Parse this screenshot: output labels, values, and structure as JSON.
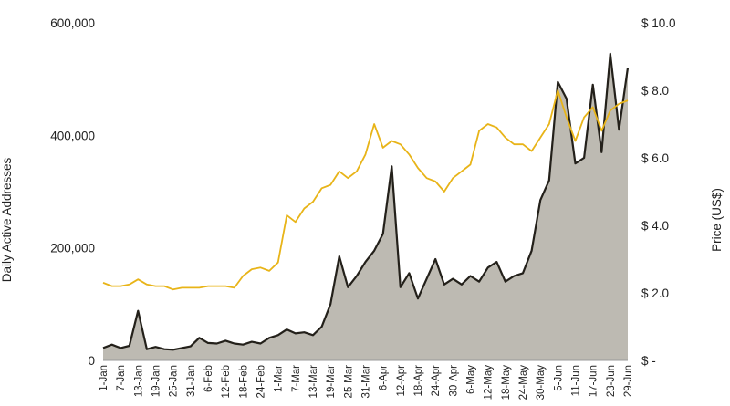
{
  "chart_data": {
    "type": "area",
    "title": "",
    "ylabel": "Daily Active Addresses",
    "y2label": "Price (US$)",
    "ylim": [
      0,
      600000
    ],
    "y2lim": [
      0,
      10
    ],
    "yticks": [
      "0",
      "200,000",
      "400,000",
      "600,000"
    ],
    "y2ticks": [
      "$ -",
      "$ 2.0",
      "$ 4.0",
      "$ 6.0",
      "$ 8.0",
      "$ 10.0"
    ],
    "xticks": [
      "1-Jan",
      "7-Jan",
      "13-Jan",
      "19-Jan",
      "25-Jan",
      "31-Jan",
      "6-Feb",
      "12-Feb",
      "18-Feb",
      "24-Feb",
      "1-Mar",
      "7-Mar",
      "13-Mar",
      "19-Mar",
      "25-Mar",
      "31-Mar",
      "6-Apr",
      "12-Apr",
      "18-Apr",
      "24-Apr",
      "30-Apr",
      "6-May",
      "12-May",
      "18-May",
      "24-May",
      "30-May",
      "5-Jun",
      "11-Jun",
      "17-Jun",
      "23-Jun",
      "29-Jun"
    ],
    "x_days": [
      0,
      3,
      6,
      9,
      12,
      15,
      18,
      21,
      24,
      27,
      30,
      33,
      36,
      39,
      42,
      45,
      48,
      51,
      54,
      57,
      60,
      63,
      66,
      69,
      72,
      75,
      78,
      81,
      84,
      87,
      90,
      93,
      96,
      99,
      102,
      105,
      108,
      111,
      114,
      117,
      120,
      123,
      126,
      129,
      132,
      135,
      138,
      141,
      144,
      147,
      150,
      153,
      156,
      159,
      162,
      165,
      168,
      171,
      174,
      177,
      180
    ],
    "series": [
      {
        "name": "Daily Active Addresses",
        "axis": "left",
        "color": "#23201a",
        "fill": "#bdbab2",
        "values": [
          22000,
          28000,
          22000,
          26000,
          88000,
          20000,
          24000,
          20000,
          19000,
          22000,
          25000,
          40000,
          31000,
          30000,
          35000,
          30000,
          28000,
          33000,
          30000,
          40000,
          45000,
          55000,
          48000,
          50000,
          45000,
          60000,
          100000,
          185000,
          130000,
          150000,
          175000,
          195000,
          225000,
          345000,
          130000,
          155000,
          110000,
          145000,
          180000,
          135000,
          145000,
          135000,
          150000,
          140000,
          165000,
          175000,
          140000,
          150000,
          155000,
          195000,
          285000,
          320000,
          495000,
          465000,
          350000,
          360000,
          490000,
          370000,
          545000,
          410000,
          520000
        ]
      },
      {
        "name": "Price",
        "axis": "right",
        "color": "#e8b418",
        "values": [
          2.3,
          2.2,
          2.2,
          2.25,
          2.4,
          2.25,
          2.2,
          2.2,
          2.1,
          2.15,
          2.15,
          2.15,
          2.2,
          2.2,
          2.2,
          2.15,
          2.5,
          2.7,
          2.75,
          2.65,
          2.9,
          4.3,
          4.1,
          4.5,
          4.7,
          5.1,
          5.2,
          5.6,
          5.4,
          5.6,
          6.1,
          7.0,
          6.3,
          6.5,
          6.4,
          6.1,
          5.7,
          5.4,
          5.3,
          5.0,
          5.4,
          5.6,
          5.8,
          6.8,
          7.0,
          6.9,
          6.6,
          6.4,
          6.4,
          6.2,
          6.6,
          7.0,
          8.0,
          7.2,
          6.5,
          7.2,
          7.5,
          6.8,
          7.4,
          7.6,
          7.7
        ]
      }
    ],
    "grid": false,
    "legend": "none"
  }
}
